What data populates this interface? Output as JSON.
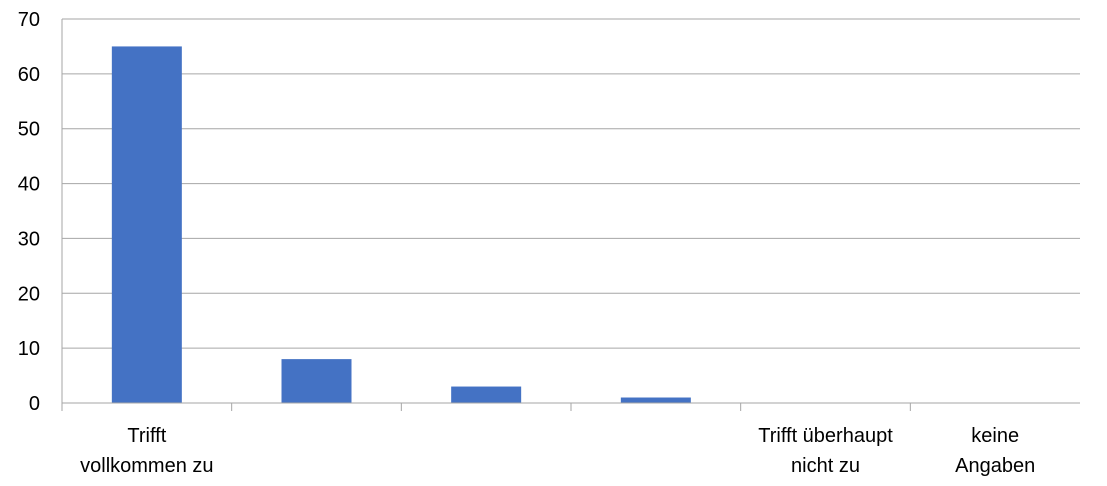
{
  "chart_data": {
    "type": "bar",
    "categories": [
      [
        "Trifft",
        "vollkommen zu"
      ],
      [
        ""
      ],
      [
        ""
      ],
      [
        ""
      ],
      [
        "Trifft überhaupt",
        "nicht zu"
      ],
      [
        "keine",
        "Angaben"
      ]
    ],
    "values": [
      65,
      8,
      3,
      1,
      0,
      0
    ],
    "ylim": [
      0,
      70
    ],
    "yticks": [
      0,
      10,
      20,
      30,
      40,
      50,
      60,
      70
    ],
    "grid": true,
    "legend": "none",
    "colors": {
      "bar": "#4472C4",
      "grid": "#A6A6A6",
      "axis": "#A6A6A6"
    }
  }
}
